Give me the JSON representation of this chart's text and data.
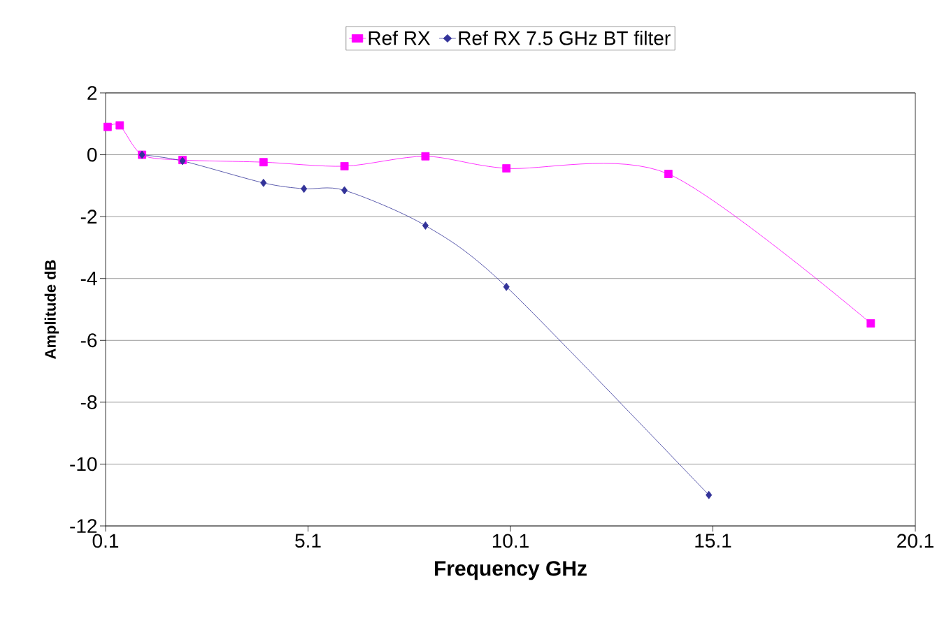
{
  "chart_data": {
    "type": "line",
    "xlabel": "Frequency GHz",
    "ylabel": "Amplitude dB",
    "xlim": [
      0.1,
      20.1
    ],
    "xticks": [
      0.1,
      5.1,
      10.1,
      15.1,
      20.1
    ],
    "ylim": [
      -12,
      2
    ],
    "yticks": [
      -12,
      -10,
      -8,
      -6,
      -4,
      -2,
      0,
      2
    ],
    "grid": "y",
    "legend": "top",
    "line_style": "solid",
    "series": [
      {
        "name": "Ref RX",
        "color": "#ff00ff",
        "marker": "square",
        "x": [
          0.15,
          0.45,
          1.0,
          2.0,
          4.0,
          6.0,
          8.0,
          10.0,
          14.0,
          19.0
        ],
        "values": [
          0.9,
          0.95,
          0.0,
          -0.17,
          -0.24,
          -0.37,
          -0.05,
          -0.44,
          -0.62,
          -5.45
        ]
      },
      {
        "name": "Ref RX 7.5 GHz BT filter",
        "color": "#333399",
        "marker": "diamond",
        "x": [
          1.0,
          2.0,
          4.0,
          5.0,
          6.0,
          8.0,
          10.0,
          15.0
        ],
        "values": [
          0.0,
          -0.2,
          -0.91,
          -1.1,
          -1.15,
          -2.29,
          -4.27,
          -11.0
        ]
      }
    ]
  }
}
